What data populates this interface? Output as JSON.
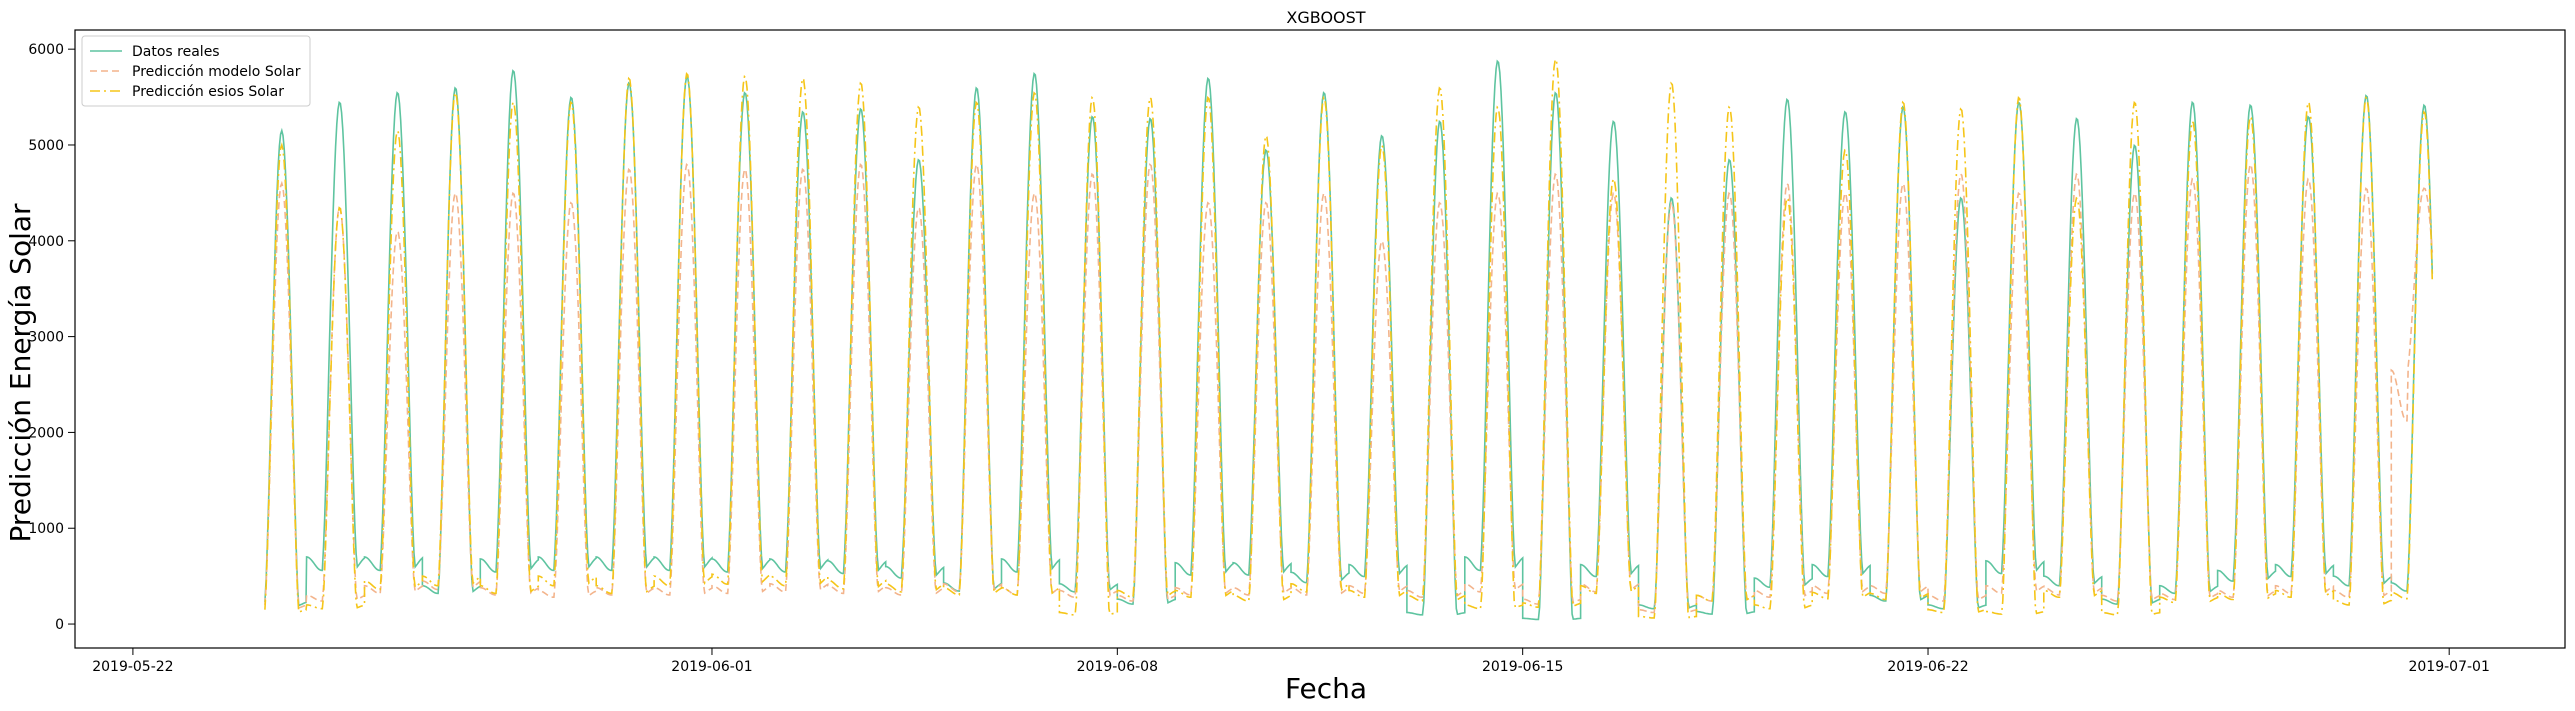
{
  "chart_data": {
    "type": "line",
    "title": "XGBOOST",
    "xlabel": "Fecha",
    "ylabel": "Predicción Energía Solar",
    "x_ticks": [
      "2019-05-22",
      "2019-06-01",
      "2019-06-08",
      "2019-06-15",
      "2019-06-22",
      "2019-07-01"
    ],
    "y_ticks": [
      "0",
      "1000",
      "2000",
      "3000",
      "4000",
      "5000",
      "6000"
    ],
    "ylim": [
      -250,
      6200
    ],
    "xlim": [
      "2019-05-21",
      "2019-07-03"
    ],
    "grid": false,
    "legend_position": "top-left",
    "x_start_date": "2019-05-24",
    "series": [
      {
        "name": "Datos reales",
        "color": "#5ec4a0",
        "style": "solid",
        "daily_peaks": [
          5150,
          5450,
          5550,
          5600,
          5780,
          5500,
          5650,
          5720,
          5550,
          5350,
          5380,
          4850,
          5600,
          5750,
          5300,
          5280,
          5700,
          4950,
          5550,
          5100,
          5250,
          5880,
          5550,
          5250,
          4450,
          4850,
          5480,
          5350,
          5400,
          4450,
          5450,
          5280,
          5000,
          5450,
          5420,
          5300,
          5520,
          5420
        ],
        "daily_troughs": [
          230,
          700,
          700,
          400,
          680,
          700,
          700,
          700,
          680,
          680,
          660,
          600,
          430,
          680,
          420,
          260,
          640,
          640,
          540,
          620,
          120,
          700,
          60,
          620,
          200,
          130,
          480,
          620,
          300,
          200,
          660,
          500,
          260,
          400,
          560,
          620,
          500,
          430
        ]
      },
      {
        "name": "Predicción modelo Solar",
        "color": "#f3b48c",
        "style": "dashed",
        "daily_peaks": [
          4600,
          4350,
          4100,
          4500,
          4500,
          4400,
          4750,
          4800,
          4750,
          4750,
          4800,
          4350,
          4800,
          4500,
          4700,
          4800,
          4400,
          4400,
          4500,
          4000,
          4400,
          4500,
          4700,
          4500,
          4400,
          4500,
          4600,
          4500,
          4600,
          4700,
          4500,
          4700,
          4500,
          4650,
          4800,
          4650,
          4550,
          4550
        ],
        "daily_troughs": [
          200,
          300,
          400,
          450,
          380,
          350,
          380,
          380,
          400,
          420,
          400,
          380,
          420,
          380,
          350,
          300,
          380,
          380,
          380,
          400,
          350,
          420,
          260,
          420,
          150,
          300,
          350,
          400,
          400,
          300,
          400,
          380,
          300,
          320,
          350,
          400,
          350,
          2650
        ]
      },
      {
        "name": "Predicción esios Solar",
        "color": "#f5c518",
        "style": "dashdot",
        "daily_peaks": [
          5000,
          4350,
          5150,
          5550,
          5450,
          5450,
          5700,
          5750,
          5720,
          5700,
          5650,
          5400,
          5450,
          5550,
          5500,
          5500,
          5500,
          5100,
          5500,
          5000,
          5600,
          5400,
          5900,
          4650,
          5650,
          5400,
          4450,
          4950,
          5450,
          5380,
          5500,
          4450,
          5450,
          5250,
          5300,
          5450,
          5500,
          5350
        ],
        "daily_troughs": [
          150,
          200,
          450,
          500,
          400,
          500,
          400,
          500,
          520,
          500,
          460,
          420,
          380,
          380,
          120,
          350,
          350,
          300,
          420,
          350,
          300,
          200,
          220,
          400,
          80,
          300,
          200,
          330,
          320,
          150,
          130,
          350,
          120,
          280,
          320,
          350,
          250,
          330
        ]
      }
    ]
  }
}
